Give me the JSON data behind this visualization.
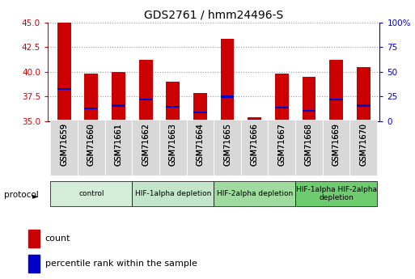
{
  "title": "GDS2761 / hmm24496-S",
  "samples": [
    "GSM71659",
    "GSM71660",
    "GSM71661",
    "GSM71662",
    "GSM71663",
    "GSM71664",
    "GSM71665",
    "GSM71666",
    "GSM71667",
    "GSM71668",
    "GSM71669",
    "GSM71670"
  ],
  "red_values": [
    45.0,
    39.8,
    40.0,
    41.2,
    39.0,
    37.9,
    43.3,
    35.4,
    39.8,
    39.5,
    41.2,
    40.5
  ],
  "blue_values": [
    38.3,
    36.3,
    36.6,
    37.2,
    36.5,
    35.9,
    37.5,
    35.2,
    36.4,
    36.1,
    37.2,
    36.6
  ],
  "ymin": 35,
  "ymax": 45,
  "yticks": [
    35,
    37.5,
    40,
    42.5,
    45
  ],
  "right_yticks": [
    0,
    25,
    50,
    75,
    100
  ],
  "right_yticklabels": [
    "0",
    "25",
    "50",
    "75",
    "100%"
  ],
  "left_color": "#cc0000",
  "right_color": "#0000cc",
  "bar_color": "#cc0000",
  "blue_color": "#0000cc",
  "bar_width": 0.5,
  "protocols": [
    {
      "label": "control",
      "start": 0,
      "end": 3,
      "color": "#d4edda"
    },
    {
      "label": "HIF-1alpha depletion",
      "start": 3,
      "end": 6,
      "color": "#c3e6cb"
    },
    {
      "label": "HIF-2alpha depletion",
      "start": 6,
      "end": 9,
      "color": "#9fda9f"
    },
    {
      "label": "HIF-1alpha HIF-2alpha\ndepletion",
      "start": 9,
      "end": 12,
      "color": "#6dcc6d"
    }
  ],
  "legend_count_color": "#cc0000",
  "legend_blue_color": "#0000cc",
  "grid_color": "#999999",
  "fig_width": 5.13,
  "fig_height": 3.45,
  "fig_dpi": 100
}
